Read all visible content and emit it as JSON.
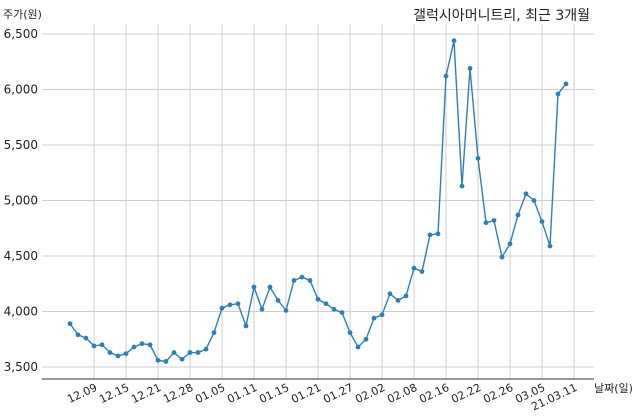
{
  "chart_data": {
    "type": "line",
    "title": "갤럭시아머니트리, 최근 3개월",
    "xlabel": "날짜(일)",
    "ylabel": "주가(원)",
    "ylim": [
      3500,
      6500
    ],
    "yticks": [
      3500,
      4000,
      4500,
      5000,
      5500,
      6000,
      6500
    ],
    "ytick_labels": [
      "3,500",
      "4,000",
      "4,500",
      "5,000",
      "5,500",
      "6,000",
      "6,500"
    ],
    "xtick_labels": [
      "12.09",
      "12.15",
      "12.21",
      "12.28",
      "01.05",
      "01.11",
      "01.15",
      "01.21",
      "01.27",
      "02.02",
      "02.08",
      "02.16",
      "02.22",
      "02.26",
      "03.05",
      "21.03.11"
    ],
    "xtick_positions": [
      3,
      7,
      11,
      15,
      19,
      23,
      27,
      31,
      35,
      39,
      43,
      47,
      51,
      55,
      59,
      63
    ],
    "grid": true,
    "color": "#2f7fb5",
    "series": [
      {
        "values": [
          3890,
          3790,
          3760,
          3690,
          3700,
          3630,
          3600,
          3620,
          3680,
          3710,
          3700,
          3560,
          3550,
          3630,
          3570,
          3630,
          3630,
          3660,
          3810,
          4030,
          4060,
          4070,
          3870,
          4220,
          4020,
          4220,
          4100,
          4010,
          4280,
          4310,
          4280,
          4110,
          4070,
          4020,
          3990,
          3810,
          3680,
          3750,
          3940,
          3970,
          4160,
          4100,
          4140,
          4390,
          4360,
          4690,
          4700,
          6120,
          6440,
          5130,
          6190,
          5380,
          4800,
          4820,
          4490,
          4610,
          4870,
          5060,
          5000,
          4810,
          4590,
          5960,
          6050
        ]
      }
    ]
  }
}
